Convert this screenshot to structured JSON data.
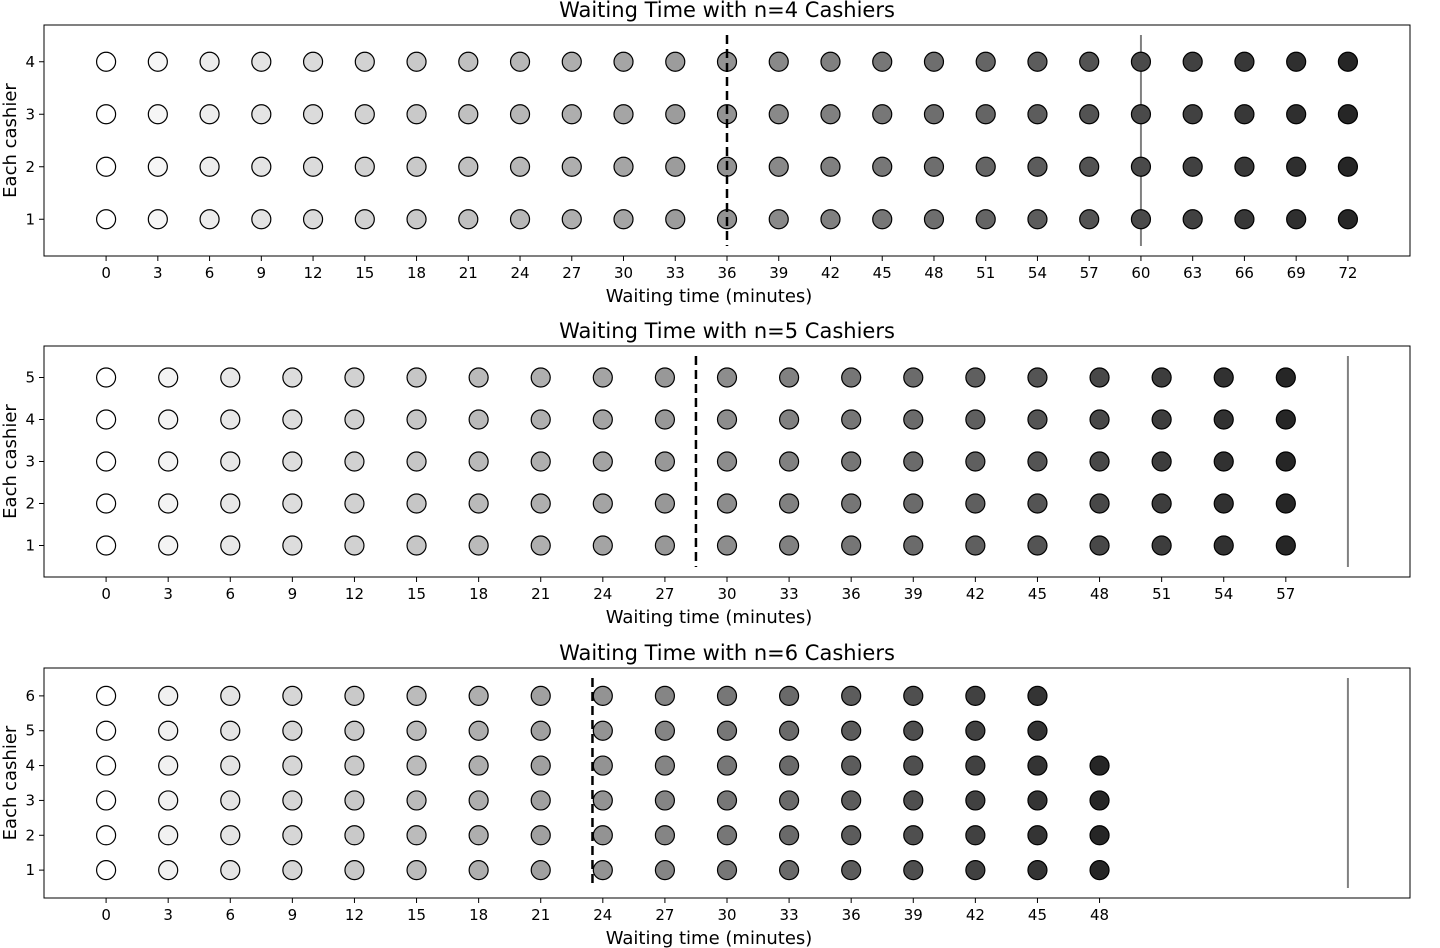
{
  "chart_data": [
    {
      "type": "scatter",
      "title": "Waiting Time with n=4 Cashiers",
      "xlabel": "Waiting time (minutes)",
      "ylabel": "Each cashier",
      "x_ticks": [
        0,
        3,
        6,
        9,
        12,
        15,
        18,
        21,
        24,
        27,
        30,
        33,
        36,
        39,
        42,
        45,
        48,
        51,
        54,
        57,
        60,
        63,
        66,
        69,
        72
      ],
      "y_ticks": [
        1,
        2,
        3,
        4
      ],
      "xlim": [
        -3.6,
        75.6
      ],
      "ylim": [
        0.3,
        4.7
      ],
      "column_heights": [
        4,
        4,
        4,
        4,
        4,
        4,
        4,
        4,
        4,
        4,
        4,
        4,
        4,
        4,
        4,
        4,
        4,
        4,
        4,
        4,
        4,
        4,
        4,
        4,
        4
      ],
      "dashed_line_x": 36,
      "solid_line_x": 60,
      "grid": false
    },
    {
      "type": "scatter",
      "title": "Waiting Time with n=5 Cashiers",
      "xlabel": "Waiting time (minutes)",
      "ylabel": "Each cashier",
      "x_ticks": [
        0,
        3,
        6,
        9,
        12,
        15,
        18,
        21,
        24,
        27,
        30,
        33,
        36,
        39,
        42,
        45,
        48,
        51,
        54,
        57
      ],
      "y_ticks": [
        1,
        2,
        3,
        4,
        5
      ],
      "xlim": [
        -3,
        63
      ],
      "ylim": [
        0.25,
        5.75
      ],
      "column_heights": [
        5,
        5,
        5,
        5,
        5,
        5,
        5,
        5,
        5,
        5,
        5,
        5,
        5,
        5,
        5,
        5,
        5,
        5,
        5,
        5
      ],
      "dashed_line_x": 28.5,
      "solid_line_x": 60,
      "grid": false
    },
    {
      "type": "scatter",
      "title": "Waiting Time with n=6 Cashiers",
      "xlabel": "Waiting time (minutes)",
      "ylabel": "Each cashier",
      "x_ticks": [
        0,
        3,
        6,
        9,
        12,
        15,
        18,
        21,
        24,
        27,
        30,
        33,
        36,
        39,
        42,
        45,
        48
      ],
      "y_ticks": [
        1,
        2,
        3,
        4,
        5,
        6
      ],
      "xlim": [
        -3,
        63
      ],
      "ylim": [
        0.2,
        6.8
      ],
      "column_heights": [
        6,
        6,
        6,
        6,
        6,
        6,
        6,
        6,
        6,
        6,
        6,
        6,
        6,
        6,
        6,
        6,
        4
      ],
      "dashed_line_x": 23.5,
      "solid_line_x": 60,
      "grid": false
    }
  ]
}
